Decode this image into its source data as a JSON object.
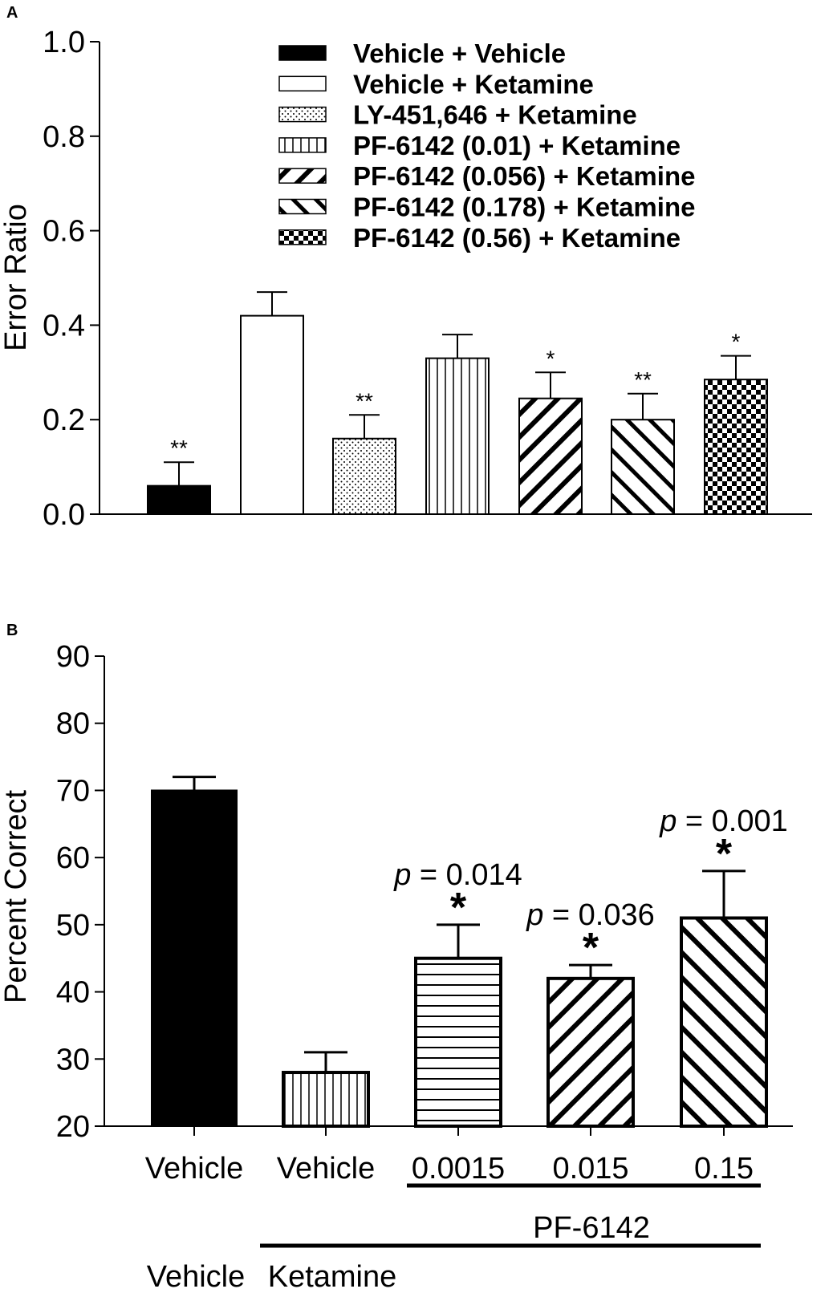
{
  "chart_data": [
    {
      "panel": "A",
      "type": "bar",
      "ylabel": "Error Ratio",
      "ylim": [
        0,
        1.0
      ],
      "yticks": [
        "0.0",
        "0.2",
        "0.4",
        "0.6",
        "0.8",
        "1.0"
      ],
      "legend_position": "top-right",
      "series": [
        {
          "name": "Vehicle + Vehicle",
          "value": 0.06,
          "error": 0.05,
          "sig": "**",
          "pattern": "solid"
        },
        {
          "name": "Vehicle + Ketamine",
          "value": 0.42,
          "error": 0.05,
          "sig": "",
          "pattern": "open"
        },
        {
          "name": "LY-451,646 + Ketamine",
          "value": 0.16,
          "error": 0.05,
          "sig": "**",
          "pattern": "dots"
        },
        {
          "name": "PF-6142 (0.01) + Ketamine",
          "value": 0.33,
          "error": 0.05,
          "sig": "",
          "pattern": "vlines"
        },
        {
          "name": "PF-6142 (0.056) + Ketamine",
          "value": 0.245,
          "error": 0.055,
          "sig": "*",
          "pattern": "diag-up"
        },
        {
          "name": "PF-6142 (0.178) + Ketamine",
          "value": 0.2,
          "error": 0.055,
          "sig": "**",
          "pattern": "diag-down"
        },
        {
          "name": "PF-6142 (0.56) + Ketamine",
          "value": 0.285,
          "error": 0.05,
          "sig": "*",
          "pattern": "checker"
        }
      ]
    },
    {
      "panel": "B",
      "type": "bar",
      "ylabel": "Percent Correct",
      "ylim": [
        20,
        90
      ],
      "yticks": [
        "20",
        "30",
        "40",
        "50",
        "60",
        "70",
        "80",
        "90"
      ],
      "categories": [
        "Vehicle",
        "Vehicle",
        "0.0015",
        "0.015",
        "0.15"
      ],
      "values": [
        70,
        28,
        45,
        42,
        51
      ],
      "errors": [
        2,
        3,
        5,
        2,
        7
      ],
      "patterns": [
        "solid",
        "vlines",
        "hlines",
        "diag-up-thick",
        "diag-down-thick"
      ],
      "significance": [
        "",
        "",
        "*",
        "*",
        "*"
      ],
      "p_prefix": "p",
      "p_values": [
        "",
        "",
        " = 0.014",
        " = 0.036",
        " = 0.001"
      ],
      "group_labels": {
        "drug": "PF-6142",
        "pretreatment_vehicle": "Vehicle",
        "pretreatment_ketamine": "Ketamine"
      }
    }
  ]
}
